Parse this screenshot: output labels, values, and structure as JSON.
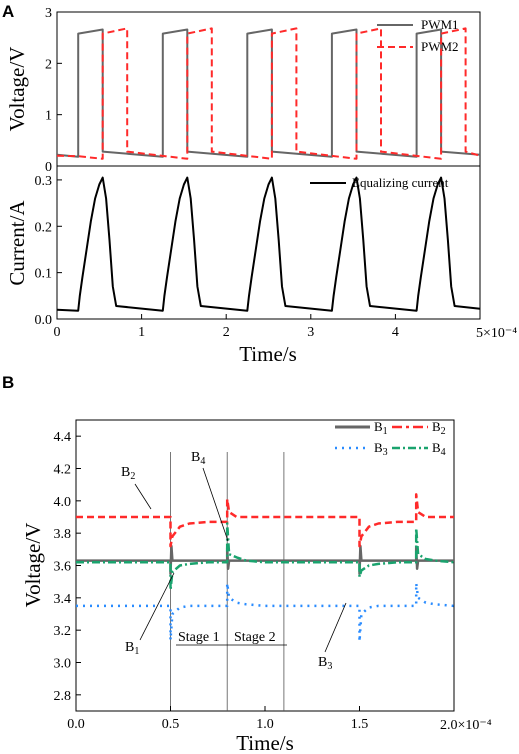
{
  "figure": {
    "panel_a": "A",
    "panel_b": "B"
  },
  "chart_data": [
    {
      "type": "line",
      "panel": "A-top",
      "xlabel": "",
      "ylabel": "Voltage/V",
      "xlim": [
        0,
        5
      ],
      "ylim": [
        0,
        3
      ],
      "yticks": [
        0,
        1,
        2,
        3
      ],
      "legend_position": "top-right",
      "series": [
        {
          "name": "PWM1",
          "color": "#666666",
          "style": "solid",
          "x": [
            0,
            0.25,
            0.25,
            0.54,
            0.54,
            1.25,
            1.25,
            1.54,
            1.54,
            2.25,
            2.25,
            2.54,
            2.54,
            3.25,
            3.25,
            3.54,
            3.54,
            4.25,
            4.25,
            4.54,
            4.54,
            5.0
          ],
          "y": [
            0.22,
            0.18,
            2.58,
            2.66,
            0.28,
            0.18,
            2.58,
            2.66,
            0.28,
            0.18,
            2.58,
            2.66,
            0.28,
            0.18,
            2.58,
            2.66,
            0.28,
            0.18,
            2.58,
            2.66,
            0.28,
            0.22
          ]
        },
        {
          "name": "PWM2",
          "color": "#ff2a2a",
          "style": "dashed",
          "x": [
            0,
            0.25,
            0.54,
            0.54,
            0.83,
            0.83,
            1.54,
            1.54,
            1.83,
            1.83,
            2.54,
            2.54,
            2.83,
            2.83,
            3.54,
            3.54,
            3.83,
            3.83,
            4.54,
            4.54,
            4.83,
            4.83,
            5.0
          ],
          "y": [
            0.2,
            0.19,
            0.14,
            2.58,
            2.68,
            0.28,
            0.14,
            2.58,
            2.68,
            0.28,
            0.14,
            2.58,
            2.68,
            0.28,
            0.14,
            2.58,
            2.68,
            0.28,
            0.14,
            2.58,
            2.68,
            0.28,
            0.2
          ]
        }
      ]
    },
    {
      "type": "line",
      "panel": "A-bottom",
      "xlabel": "Time/s",
      "ylabel": "Current/A",
      "x_multiplier": "5×10⁻⁴",
      "xlim": [
        0,
        5
      ],
      "ylim": [
        0,
        0.33
      ],
      "xticks": [
        0,
        1,
        2,
        3,
        4
      ],
      "yticks": [
        0.0,
        0.1,
        0.2,
        0.3
      ],
      "legend_position": "top-right",
      "series": [
        {
          "name": "Equalizing current",
          "color": "#000000",
          "style": "solid",
          "x": [
            0,
            0.25,
            0.27,
            0.3,
            0.35,
            0.4,
            0.45,
            0.5,
            0.54,
            0.58,
            0.62,
            0.66,
            0.7,
            1.25,
            1.27,
            1.3,
            1.35,
            1.4,
            1.45,
            1.5,
            1.54,
            1.58,
            1.62,
            1.66,
            1.7,
            2.25,
            2.27,
            2.3,
            2.35,
            2.4,
            2.45,
            2.5,
            2.54,
            2.58,
            2.62,
            2.66,
            2.7,
            3.25,
            3.27,
            3.3,
            3.35,
            3.4,
            3.45,
            3.5,
            3.54,
            3.58,
            3.62,
            3.66,
            3.7,
            4.25,
            4.27,
            4.3,
            4.35,
            4.4,
            4.45,
            4.5,
            4.54,
            4.58,
            4.62,
            4.66,
            4.7,
            5.0
          ],
          "y": [
            0.02,
            0.018,
            0.05,
            0.09,
            0.15,
            0.21,
            0.26,
            0.29,
            0.305,
            0.26,
            0.17,
            0.07,
            0.028,
            0.018,
            0.05,
            0.09,
            0.15,
            0.21,
            0.26,
            0.29,
            0.305,
            0.26,
            0.17,
            0.07,
            0.028,
            0.018,
            0.05,
            0.09,
            0.15,
            0.21,
            0.26,
            0.29,
            0.305,
            0.26,
            0.17,
            0.07,
            0.028,
            0.018,
            0.05,
            0.09,
            0.15,
            0.21,
            0.26,
            0.29,
            0.305,
            0.26,
            0.17,
            0.07,
            0.028,
            0.018,
            0.05,
            0.09,
            0.15,
            0.21,
            0.26,
            0.29,
            0.305,
            0.26,
            0.17,
            0.07,
            0.028,
            0.022
          ]
        }
      ]
    },
    {
      "type": "line",
      "panel": "B",
      "xlabel": "Time/s",
      "ylabel": "Voltage/V",
      "x_multiplier": "2.0×10⁻⁴",
      "xlim": [
        0,
        2.0
      ],
      "ylim": [
        2.7,
        4.5
      ],
      "xticks": [
        "0.0",
        "0.5",
        "1.0",
        "1.5"
      ],
      "yticks": [
        "2.8",
        "3.0",
        "3.2",
        "3.4",
        "3.6",
        "3.8",
        "4.0",
        "4.2",
        "4.4"
      ],
      "legend_position": "top-right",
      "series": [
        {
          "name": "B1",
          "color": "#666666",
          "style": "solid",
          "x": [
            0,
            0.5,
            0.5,
            0.505,
            0.51,
            0.8,
            0.8,
            0.805,
            0.81,
            1.5,
            1.5,
            1.505,
            1.51,
            1.8,
            1.8,
            1.805,
            1.81,
            2.0
          ],
          "y": [
            3.63,
            3.63,
            3.55,
            3.72,
            3.63,
            3.63,
            3.71,
            3.58,
            3.63,
            3.63,
            3.55,
            3.72,
            3.63,
            3.63,
            3.71,
            3.58,
            3.63,
            3.63
          ]
        },
        {
          "name": "B2",
          "color": "#ff2a2a",
          "style": "dashed",
          "x": [
            0,
            0.5,
            0.5,
            0.51,
            0.55,
            0.6,
            0.7,
            0.8,
            0.8,
            0.81,
            0.85,
            1.5,
            1.5,
            1.51,
            1.55,
            1.6,
            1.7,
            1.8,
            1.8,
            1.81,
            1.85,
            2.0
          ],
          "y": [
            3.9,
            3.9,
            3.72,
            3.78,
            3.84,
            3.86,
            3.87,
            3.87,
            4.01,
            3.93,
            3.9,
            3.9,
            3.72,
            3.78,
            3.84,
            3.86,
            3.87,
            3.87,
            4.04,
            3.93,
            3.9,
            3.9
          ]
        },
        {
          "name": "B3",
          "color": "#2a8cff",
          "style": "dotted",
          "x": [
            0,
            0.5,
            0.5,
            0.51,
            0.55,
            0.6,
            0.7,
            0.8,
            0.8,
            0.81,
            0.85,
            0.9,
            1.0,
            1.5,
            1.5,
            1.51,
            1.55,
            1.6,
            1.7,
            1.8,
            1.8,
            1.81,
            1.85,
            1.9,
            2.0
          ],
          "y": [
            3.35,
            3.35,
            3.14,
            3.3,
            3.34,
            3.35,
            3.35,
            3.35,
            3.49,
            3.4,
            3.37,
            3.36,
            3.35,
            3.35,
            3.13,
            3.3,
            3.34,
            3.35,
            3.35,
            3.35,
            3.49,
            3.4,
            3.37,
            3.36,
            3.35
          ]
        },
        {
          "name": "B4",
          "color": "#1aa36e",
          "style": "dashdot",
          "x": [
            0,
            0.5,
            0.5,
            0.51,
            0.55,
            0.6,
            0.7,
            0.8,
            0.8,
            0.81,
            0.85,
            0.9,
            1.0,
            1.5,
            1.5,
            1.51,
            1.55,
            1.6,
            1.7,
            1.8,
            1.8,
            1.81,
            1.85,
            1.9,
            2.0
          ],
          "y": [
            3.62,
            3.62,
            3.45,
            3.56,
            3.6,
            3.61,
            3.62,
            3.62,
            3.86,
            3.67,
            3.65,
            3.63,
            3.62,
            3.62,
            3.53,
            3.57,
            3.6,
            3.61,
            3.62,
            3.62,
            3.83,
            3.67,
            3.64,
            3.63,
            3.62
          ]
        }
      ],
      "annotations": [
        "B1",
        "B2",
        "B3",
        "B4",
        "Stage 1",
        "Stage 2"
      ],
      "stage_boundaries_x": [
        0.5,
        0.8,
        1.1
      ]
    }
  ]
}
